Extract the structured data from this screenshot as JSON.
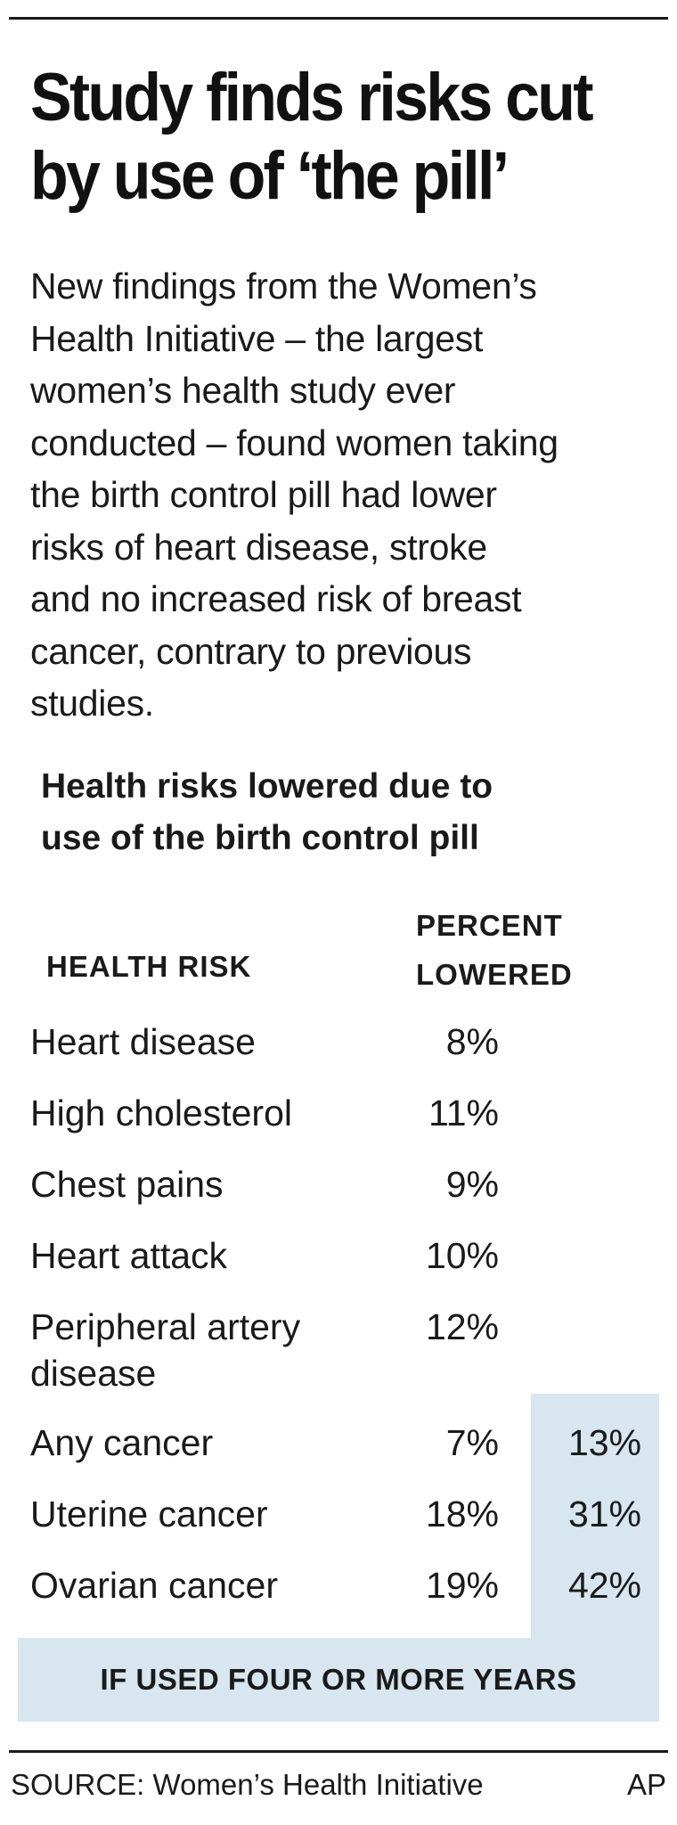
{
  "headline": [
    "Study finds risks cut",
    "by use of ‘the pill’"
  ],
  "intro": [
    "New findings from the Women’s",
    "Health Initiative – the largest",
    "women’s health study ever",
    "conducted – found women taking",
    "the birth control pill had lower",
    "risks of heart disease, stroke",
    "and no increased risk of breast",
    "cancer, contrary to previous",
    "studies."
  ],
  "chart_data": {
    "type": "table",
    "title": [
      "Health risks lowered due to",
      "use of the birth control pill"
    ],
    "columns": {
      "risk": "HEALTH RISK",
      "percent": [
        "PERCENT",
        "LOWERED"
      ],
      "long_use_note": "IF USED FOUR OR MORE YEARS"
    },
    "rows": [
      {
        "risk": [
          "Heart disease"
        ],
        "percent": "8%",
        "value": 8
      },
      {
        "risk": [
          "High cholesterol"
        ],
        "percent": "11%",
        "value": 11
      },
      {
        "risk": [
          "Chest pains"
        ],
        "percent": "9%",
        "value": 9
      },
      {
        "risk": [
          "Heart attack"
        ],
        "percent": "10%",
        "value": 10
      },
      {
        "risk": [
          "Peripheral artery",
          "disease"
        ],
        "percent": "12%",
        "value": 12
      },
      {
        "risk": [
          "Any cancer"
        ],
        "percent": "7%",
        "value": 7,
        "long_use": "13%",
        "long_use_value": 13
      },
      {
        "risk": [
          "Uterine cancer"
        ],
        "percent": "18%",
        "value": 18,
        "long_use": "31%",
        "long_use_value": 31
      },
      {
        "risk": [
          "Ovarian cancer"
        ],
        "percent": "19%",
        "value": 19,
        "long_use": "42%",
        "long_use_value": 42
      }
    ],
    "colors": {
      "highlight": "#d7e6ef",
      "text": "#1a1a1a"
    }
  },
  "source": "SOURCE: Women’s Health Initiative",
  "credit": "AP"
}
